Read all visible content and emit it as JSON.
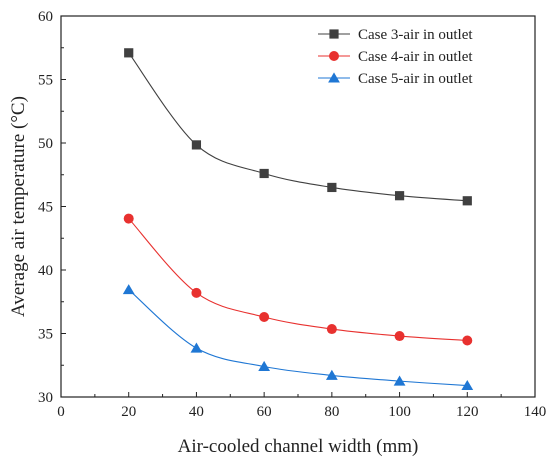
{
  "chart_data": {
    "type": "line",
    "xlabel": "Air-cooled channel width (mm)",
    "ylabel": "Average air temperature (°C)",
    "xlim": [
      0,
      140
    ],
    "ylim": [
      30,
      60
    ],
    "xticks": [
      0,
      20,
      40,
      60,
      80,
      100,
      120,
      140
    ],
    "yticks": [
      30,
      35,
      40,
      45,
      50,
      55,
      60
    ],
    "grid": false,
    "legend_position": "top-right",
    "x": [
      20,
      40,
      60,
      80,
      100,
      120
    ],
    "series": [
      {
        "name": "Case 3-air in outlet",
        "marker": "square",
        "color": "#404040",
        "values": [
          57.1,
          49.85,
          47.6,
          46.5,
          45.85,
          45.45
        ]
      },
      {
        "name": "Case 4-air in outlet",
        "marker": "circle",
        "color": "#e8312f",
        "values": [
          44.05,
          38.2,
          36.3,
          35.35,
          34.8,
          34.45
        ]
      },
      {
        "name": "Case 5-air in outlet",
        "marker": "triangle",
        "color": "#1f77d4",
        "values": [
          38.45,
          33.85,
          32.4,
          31.7,
          31.25,
          30.9
        ]
      }
    ]
  }
}
